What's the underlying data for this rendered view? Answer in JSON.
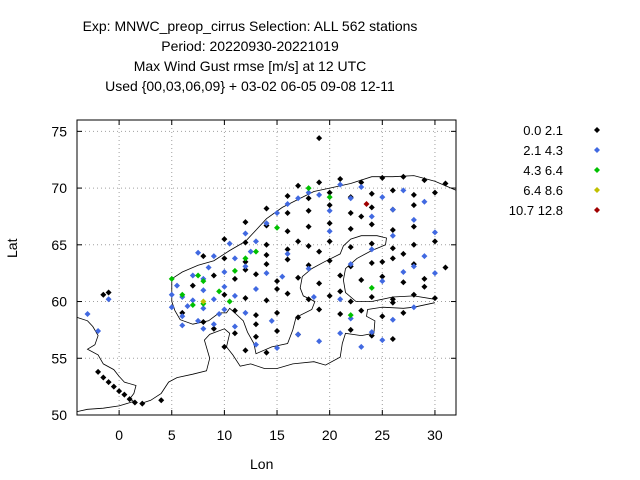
{
  "chart_data": {
    "type": "scatter",
    "title_lines": [
      "Exp: MNWC_preop_cirrus   Selection: ALL    562 stations",
      "Period: 20220930-20221019",
      "Max Wind Gust rmse [m/s] at  12 UTC",
      "Used {00,03,06,09} + 03-02 06-05 09-08 12-11"
    ],
    "xlabel": "Lon",
    "ylabel": "Lat",
    "xlim": [
      -4,
      32
    ],
    "ylim": [
      50,
      76
    ],
    "xticks": [
      0,
      5,
      10,
      15,
      20,
      25,
      30
    ],
    "yticks": [
      50,
      55,
      60,
      65,
      70,
      75
    ],
    "grid": true,
    "legend_position": "top-right-outside",
    "series": [
      {
        "name": "0.0 2.1",
        "color": "#000000",
        "points": [
          [
            19,
            74.4
          ],
          [
            -1.5,
            60.6
          ],
          [
            -1,
            60.8
          ],
          [
            -2,
            53.8
          ],
          [
            -1.5,
            53.3
          ],
          [
            -1,
            52.9
          ],
          [
            -0.5,
            52.5
          ],
          [
            0,
            52.1
          ],
          [
            0.5,
            51.8
          ],
          [
            1,
            51.4
          ],
          [
            1.5,
            51.1
          ],
          [
            2.2,
            51.0
          ],
          [
            4,
            51.3
          ],
          [
            17,
            70.2
          ],
          [
            19,
            70.5
          ],
          [
            21,
            70.8
          ],
          [
            23,
            70.5
          ],
          [
            25,
            70.9
          ],
          [
            27,
            71.0
          ],
          [
            29,
            70.7
          ],
          [
            31,
            70.4
          ],
          [
            16,
            69.3
          ],
          [
            18,
            69.1
          ],
          [
            20,
            69.6
          ],
          [
            22,
            69.2
          ],
          [
            24,
            69.5
          ],
          [
            26,
            69.8
          ],
          [
            28,
            69.4
          ],
          [
            30,
            69.6
          ],
          [
            14,
            68.2
          ],
          [
            16,
            67.8
          ],
          [
            18,
            68.0
          ],
          [
            20,
            68.5
          ],
          [
            22,
            67.8
          ],
          [
            24,
            68.3
          ],
          [
            26,
            68.1
          ],
          [
            28,
            68.5
          ],
          [
            12,
            67.0
          ],
          [
            14,
            66.7
          ],
          [
            16,
            66.2
          ],
          [
            18,
            66.6
          ],
          [
            20,
            66.9
          ],
          [
            22,
            66.4
          ],
          [
            24,
            66.8
          ],
          [
            26,
            66.3
          ],
          [
            28,
            66.6
          ],
          [
            10,
            65.5
          ],
          [
            12,
            65.2
          ],
          [
            14,
            65.0
          ],
          [
            16,
            64.6
          ],
          [
            18,
            64.9
          ],
          [
            20,
            65.3
          ],
          [
            22,
            64.8
          ],
          [
            24,
            65.1
          ],
          [
            26,
            64.7
          ],
          [
            28,
            65.0
          ],
          [
            30,
            65.3
          ],
          [
            8,
            64.0
          ],
          [
            10,
            63.8
          ],
          [
            12,
            63.5
          ],
          [
            14,
            63.3
          ],
          [
            16,
            63.7
          ],
          [
            18,
            63.2
          ],
          [
            20,
            63.6
          ],
          [
            22,
            63.1
          ],
          [
            24,
            63.4
          ],
          [
            26,
            63.8
          ],
          [
            28,
            63.3
          ],
          [
            31,
            63.0
          ],
          [
            9,
            62.3
          ],
          [
            11,
            62.0
          ],
          [
            13,
            62.4
          ],
          [
            15,
            61.8
          ],
          [
            17,
            62.1
          ],
          [
            19,
            61.6
          ],
          [
            21,
            62.3
          ],
          [
            23,
            61.9
          ],
          [
            25,
            62.2
          ],
          [
            27,
            61.7
          ],
          [
            29,
            62.0
          ],
          [
            10,
            60.6
          ],
          [
            12,
            60.3
          ],
          [
            14,
            60.1
          ],
          [
            16,
            60.7
          ],
          [
            18,
            60.2
          ],
          [
            20,
            60.5
          ],
          [
            22,
            60.0
          ],
          [
            24,
            60.4
          ],
          [
            26,
            60.2
          ],
          [
            28,
            60.6
          ],
          [
            30,
            60.3
          ],
          [
            11,
            59.2
          ],
          [
            13,
            58.8
          ],
          [
            15,
            59.0
          ],
          [
            17,
            58.6
          ],
          [
            19,
            59.3
          ],
          [
            21,
            58.9
          ],
          [
            23,
            59.2
          ],
          [
            25,
            58.7
          ],
          [
            27,
            59.0
          ],
          [
            9,
            57.6
          ],
          [
            11,
            57.2
          ],
          [
            13,
            56.9
          ],
          [
            15,
            57.4
          ],
          [
            17,
            57.1
          ],
          [
            22,
            57.5
          ],
          [
            24,
            57.0
          ],
          [
            26,
            56.7
          ],
          [
            10,
            56.0
          ],
          [
            12,
            55.7
          ],
          [
            14,
            55.5
          ],
          [
            8,
            58.2
          ],
          [
            6,
            59.0
          ],
          [
            7,
            61.4
          ],
          [
            23,
            67.5
          ],
          [
            25,
            63.5
          ],
          [
            27,
            64.2
          ],
          [
            29,
            61.3
          ],
          [
            21,
            60.9
          ],
          [
            19,
            64.4
          ],
          [
            17,
            65.3
          ],
          [
            15,
            61.1
          ],
          [
            13,
            58.0
          ],
          [
            12,
            62.8
          ],
          [
            14,
            64.1
          ],
          [
            26,
            59.9
          ]
        ]
      },
      {
        "name": "2.1 4.3",
        "color": "#4169e1",
        "points": [
          [
            -3,
            58.9
          ],
          [
            -2,
            57.4
          ],
          [
            -1,
            60.2
          ],
          [
            5,
            59.5
          ],
          [
            5,
            60.6
          ],
          [
            5.5,
            61.4
          ],
          [
            6,
            58.7
          ],
          [
            6.5,
            59.6
          ],
          [
            6,
            60.4
          ],
          [
            7,
            62.3
          ],
          [
            7.5,
            58.3
          ],
          [
            8,
            59.4
          ],
          [
            8,
            61.0
          ],
          [
            8.5,
            63.0
          ],
          [
            9,
            60.2
          ],
          [
            9.5,
            58.9
          ],
          [
            9,
            64.0
          ],
          [
            10,
            59.3
          ],
          [
            10,
            62.6
          ],
          [
            10.5,
            65.1
          ],
          [
            11,
            63.8
          ],
          [
            11,
            57.8
          ],
          [
            12,
            66.0
          ],
          [
            12.5,
            64.4
          ],
          [
            13,
            65.3
          ],
          [
            13,
            61.1
          ],
          [
            14,
            66.9
          ],
          [
            14.5,
            58.3
          ],
          [
            15,
            67.8
          ],
          [
            15.5,
            62.2
          ],
          [
            16,
            68.6
          ],
          [
            17,
            69.1
          ],
          [
            17,
            57.1
          ],
          [
            18,
            69.6
          ],
          [
            18.5,
            60.4
          ],
          [
            19,
            69.4
          ],
          [
            20,
            68.0
          ],
          [
            21,
            70.3
          ],
          [
            21,
            60.2
          ],
          [
            22,
            69.1
          ],
          [
            22,
            58.5
          ],
          [
            23,
            70.1
          ],
          [
            24,
            67.5
          ],
          [
            24,
            57.3
          ],
          [
            25,
            69.2
          ],
          [
            25,
            61.8
          ],
          [
            26,
            68.1
          ],
          [
            26,
            58.4
          ],
          [
            27,
            69.8
          ],
          [
            27,
            62.6
          ],
          [
            28,
            67.2
          ],
          [
            28,
            59.5
          ],
          [
            29,
            68.8
          ],
          [
            29,
            64.0
          ],
          [
            30,
            66.1
          ],
          [
            30,
            62.5
          ],
          [
            7,
            60.1
          ],
          [
            6,
            57.9
          ],
          [
            8,
            57.6
          ],
          [
            9,
            58.0
          ],
          [
            13,
            56.2
          ],
          [
            15,
            55.9
          ],
          [
            19,
            56.5
          ],
          [
            21,
            57.2
          ],
          [
            23,
            56.0
          ],
          [
            25,
            56.6
          ],
          [
            11,
            60.5
          ],
          [
            12,
            59.0
          ],
          [
            14,
            62.5
          ],
          [
            16,
            64.2
          ],
          [
            18,
            62.9
          ],
          [
            20,
            66.2
          ],
          [
            22,
            63.3
          ],
          [
            24,
            64.6
          ],
          [
            26,
            65.8
          ],
          [
            28,
            63.1
          ],
          [
            10,
            61.3
          ],
          [
            12,
            63.1
          ],
          [
            7.5,
            64.3
          ],
          [
            8,
            62.0
          ]
        ]
      },
      {
        "name": "4.3 6.4",
        "color": "#00c000",
        "points": [
          [
            5,
            62.0
          ],
          [
            6,
            60.6
          ],
          [
            7,
            59.7
          ],
          [
            7.5,
            62.3
          ],
          [
            8,
            61.8
          ],
          [
            8,
            59.8
          ],
          [
            9.5,
            60.9
          ],
          [
            10.5,
            60.0
          ],
          [
            11,
            62.7
          ],
          [
            12,
            63.8
          ],
          [
            13,
            64.4
          ],
          [
            15,
            66.5
          ],
          [
            18,
            70.0
          ],
          [
            20,
            69.2
          ],
          [
            22,
            58.8
          ],
          [
            24,
            61.2
          ]
        ]
      },
      {
        "name": "6.4 8.6",
        "color": "#c0c000",
        "points": [
          [
            8,
            60.0
          ]
        ]
      },
      {
        "name": "10.7 12.8",
        "color": "#a00000",
        "points": [
          [
            23.5,
            68.6
          ]
        ]
      }
    ]
  }
}
